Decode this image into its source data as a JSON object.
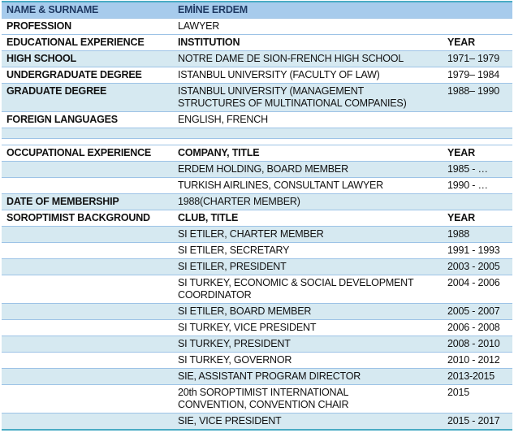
{
  "colors": {
    "header_bg": "#a7cbec",
    "band_bg": "#d6e9f1",
    "frame_border": "#49abc4",
    "row_line": "#9dc3e6",
    "navy_text": "#1f3a63",
    "text": "#111111"
  },
  "table": {
    "columns": [
      "label",
      "value",
      "year"
    ],
    "rows": [
      {
        "bg": "header",
        "label": "NAME & SURNAME",
        "value": "EMİNE ERDEM",
        "year": "",
        "bold_value": true,
        "bold_year": false
      },
      {
        "bg": "white",
        "label": "PROFESSION",
        "value": "LAWYER",
        "year": "",
        "bold_value": false,
        "bold_year": false
      },
      {
        "bg": "white",
        "label": "EDUCATIONAL EXPERIENCE",
        "value": "INSTITUTION",
        "year": "YEAR",
        "bold_value": true,
        "bold_year": true
      },
      {
        "bg": "band",
        "label": "HIGH SCHOOL",
        "value": "NOTRE DAME DE SION-FRENCH HIGH SCHOOL",
        "year": "1971– 1979",
        "bold_value": false,
        "bold_year": false
      },
      {
        "bg": "white",
        "label": "UNDERGRADUATE DEGREE",
        "value": "ISTANBUL UNIVERSITY (FACULTY OF LAW)",
        "year": "1979– 1984",
        "bold_value": false,
        "bold_year": false
      },
      {
        "bg": "band",
        "label": "GRADUATE DEGREE",
        "value": "ISTANBUL UNIVERSITY (MANAGEMENT\nSTRUCTURES OF MULTINATIONAL COMPANIES)",
        "year": "1988– 1990",
        "bold_value": false,
        "bold_year": false
      },
      {
        "bg": "white",
        "label": "FOREIGN LANGUAGES",
        "value": "ENGLISH, FRENCH",
        "year": "",
        "bold_value": false,
        "bold_year": false
      },
      {
        "bg": "band",
        "empty": true,
        "height": 12
      },
      {
        "bg": "white",
        "empty": true,
        "height": 7
      },
      {
        "bg": "white",
        "label": "OCCUPATIONAL EXPERIENCE",
        "value": "COMPANY, TITLE",
        "year": "YEAR",
        "bold_value": true,
        "bold_year": true
      },
      {
        "bg": "band",
        "label": "",
        "value": "ERDEM HOLDING, BOARD MEMBER",
        "year": "1985 - …",
        "bold_value": false,
        "bold_year": false
      },
      {
        "bg": "white",
        "label": "",
        "value": "TURKISH AIRLINES, CONSULTANT LAWYER",
        "year": "1990 - …",
        "bold_value": false,
        "bold_year": false
      },
      {
        "bg": "band",
        "label": "DATE OF MEMBERSHIP",
        "value": "1988(CHARTER MEMBER)",
        "year": "",
        "bold_value": false,
        "bold_year": false
      },
      {
        "bg": "white",
        "label": "SOROPTIMIST BACKGROUND",
        "value": "CLUB, TITLE",
        "year": "YEAR",
        "bold_value": true,
        "bold_year": true
      },
      {
        "bg": "band",
        "label": "",
        "value": "SI ETILER, CHARTER MEMBER",
        "year": "1988",
        "bold_value": false,
        "bold_year": false
      },
      {
        "bg": "white",
        "label": "",
        "value": "SI ETILER, SECRETARY",
        "year": "1991 - 1993",
        "bold_value": false,
        "bold_year": false
      },
      {
        "bg": "band",
        "label": "",
        "value": "SI ETILER, PRESIDENT",
        "year": "2003 - 2005",
        "bold_value": false,
        "bold_year": false
      },
      {
        "bg": "white",
        "label": "",
        "value": "SI TURKEY, ECONOMIC & SOCIAL DEVELOPMENT\nCOORDINATOR",
        "year": "2004 - 2006",
        "bold_value": false,
        "bold_year": false
      },
      {
        "bg": "band",
        "label": "",
        "value": "SI ETILER, BOARD MEMBER",
        "year": "2005 - 2007",
        "bold_value": false,
        "bold_year": false
      },
      {
        "bg": "white",
        "label": "",
        "value": "SI TURKEY, VICE PRESIDENT",
        "year": "2006 - 2008",
        "bold_value": false,
        "bold_year": false
      },
      {
        "bg": "band",
        "label": "",
        "value": "SI TURKEY, PRESIDENT",
        "year": "2008 - 2010",
        "bold_value": false,
        "bold_year": false
      },
      {
        "bg": "white",
        "label": "",
        "value": "SI TURKEY, GOVERNOR",
        "year": "2010 - 2012",
        "bold_value": false,
        "bold_year": false
      },
      {
        "bg": "band",
        "label": "",
        "value": "SIE, ASSISTANT PROGRAM DIRECTOR",
        "year": "2013-2015",
        "bold_value": false,
        "bold_year": false
      },
      {
        "bg": "white",
        "label": "",
        "value": "20th SOROPTIMIST INTERNATIONAL\nCONVENTION, CONVENTION CHAIR",
        "year": "2015",
        "bold_value": false,
        "bold_year": false
      },
      {
        "bg": "band",
        "label": "",
        "value": "SIE, VICE PRESIDENT",
        "year": "2015 - 2017",
        "bold_value": false,
        "bold_year": false
      }
    ]
  }
}
